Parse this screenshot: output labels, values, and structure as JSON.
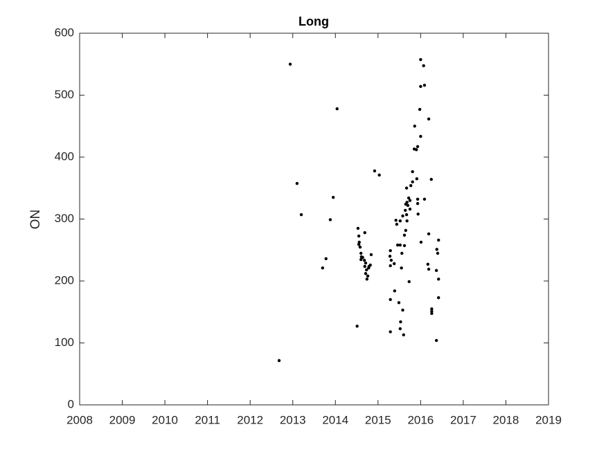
{
  "chart_data": {
    "type": "scatter",
    "title": "Long",
    "ylabel": "ON",
    "color": "#000000",
    "x": [
      2012.68,
      2012.94,
      2013.1,
      2013.2,
      2013.7,
      2013.78,
      2013.88,
      2013.95,
      2014.04,
      2014.51,
      2014.53,
      2014.55,
      2014.56,
      2014.55,
      2014.58,
      2014.6,
      2014.61,
      2014.6,
      2014.64,
      2014.68,
      2014.69,
      2014.71,
      2014.69,
      2014.73,
      2014.71,
      2014.74,
      2014.76,
      2014.78,
      2014.79,
      2014.82,
      2014.84,
      2014.92,
      2015.03,
      2015.29,
      2015.28,
      2015.31,
      2015.29,
      2015.29,
      2015.29,
      2015.38,
      2015.39,
      2015.42,
      2015.44,
      2015.46,
      2015.49,
      2015.52,
      2015.53,
      2015.52,
      2015.52,
      2015.55,
      2015.56,
      2015.58,
      2015.58,
      2015.6,
      2015.62,
      2015.62,
      2015.65,
      2015.64,
      2015.65,
      2015.67,
      2015.68,
      2015.67,
      2015.68,
      2015.72,
      2015.7,
      2015.73,
      2015.75,
      2015.75,
      2015.77,
      2015.81,
      2015.81,
      2015.85,
      2015.86,
      2015.9,
      2015.91,
      2015.93,
      2015.93,
      2015.93,
      2015.94,
      2015.98,
      2016.0,
      2016.0,
      2016.0,
      2016.01,
      2016.07,
      2016.09,
      2016.09,
      2016.19,
      2016.19,
      2016.17,
      2016.19,
      2016.25,
      2016.26,
      2016.26,
      2016.26,
      2016.37,
      2016.38,
      2016.4,
      2016.37,
      2016.42,
      2016.42,
      2016.42
    ],
    "y": [
      71.5,
      550,
      357.5,
      307,
      221,
      236,
      299,
      335,
      478,
      127,
      285,
      272.6,
      262.6,
      259,
      254.7,
      244.7,
      239,
      234.6,
      238,
      233.5,
      278,
      229,
      223.5,
      218,
      212,
      203,
      208,
      221,
      223.5,
      225.7,
      242.5,
      377.7,
      371,
      249,
      240,
      233.5,
      224.6,
      170,
      118,
      228,
      184,
      298,
      291.6,
      258,
      165,
      123,
      134,
      258,
      297,
      221,
      244.7,
      305,
      153,
      113,
      257,
      274,
      281.6,
      314,
      324,
      307,
      297,
      350,
      327,
      334,
      322,
      199,
      316,
      330,
      354,
      376.5,
      360,
      413,
      450,
      412,
      365,
      417,
      332,
      325,
      308,
      477,
      514,
      557.5,
      433.5,
      262.6,
      547.5,
      516,
      332,
      276,
      461.5,
      227,
      219,
      364,
      155,
      151,
      147.5,
      217,
      251,
      244.7,
      104,
      266,
      203,
      173
    ],
    "xlim": [
      2008,
      2019
    ],
    "ylim": [
      0,
      600
    ],
    "xticks": [
      2008,
      2009,
      2010,
      2011,
      2012,
      2013,
      2014,
      2015,
      2016,
      2017,
      2018,
      2019
    ],
    "yticks": [
      0,
      100,
      200,
      300,
      400,
      500,
      600
    ]
  }
}
